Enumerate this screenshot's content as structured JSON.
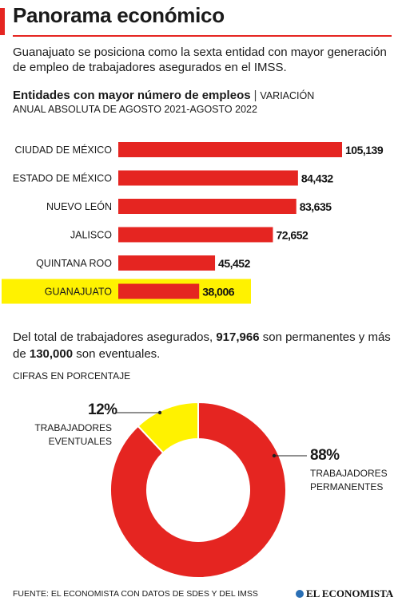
{
  "header": {
    "title": "Panorama económico",
    "subtitle": "Guanajuato se posiciona como la sexta entidad con mayor generación de empleo de trabajadores asegurados en el IMSS.",
    "chart_title": "Entidades con mayor número de empleos",
    "chart_separator": "|",
    "chart_subtitle_part1": "VARIACIÓN",
    "chart_subtitle_part2": "ANUAL ABSOLUTA DE AGOSTO 2021-AGOSTO 2022"
  },
  "summary": {
    "text1": "Del total de trabajadores asegurados, ",
    "permanentes": "917,966",
    "text2": " son permanentes y más de ",
    "eventuales": "130,000",
    "text3": " son eventuales."
  },
  "units_label": "CIFRAS EN PORCENTAJE",
  "footer": {
    "source": "FUENTE: EL ECONOMISTA CON DATOS DE SDES Y DEL IMSS",
    "brand": "EL ECONOMISTA"
  },
  "colors": {
    "accent": "#e52521",
    "highlight": "#fff200",
    "text": "#1a1a1a"
  },
  "chart_data": [
    {
      "type": "bar",
      "orientation": "horizontal",
      "categories": [
        "CIUDAD DE MÉXICO",
        "ESTADO DE MÉXICO",
        "NUEVO LEÓN",
        "JALISCO",
        "QUINTANA ROO",
        "GUANAJUATO"
      ],
      "values": [
        105139,
        84432,
        83635,
        72652,
        45452,
        38006
      ],
      "data_labels": [
        "105,139",
        "84,432",
        "83,635",
        "72,652",
        "45,452",
        "38,006"
      ],
      "highlighted": "GUANAJUATO",
      "xlim": [
        0,
        105139
      ],
      "grid": false
    },
    {
      "type": "pie",
      "style": "donut",
      "slices": [
        {
          "value": 88,
          "label": "88%",
          "name_line1": "TRABAJADORES",
          "name_line2": "PERMANENTES",
          "color": "#e52521"
        },
        {
          "value": 12,
          "label": "12%",
          "name_line1": "TRABAJADORES",
          "name_line2": "EVENTUALES",
          "color": "#fff200"
        }
      ]
    }
  ]
}
